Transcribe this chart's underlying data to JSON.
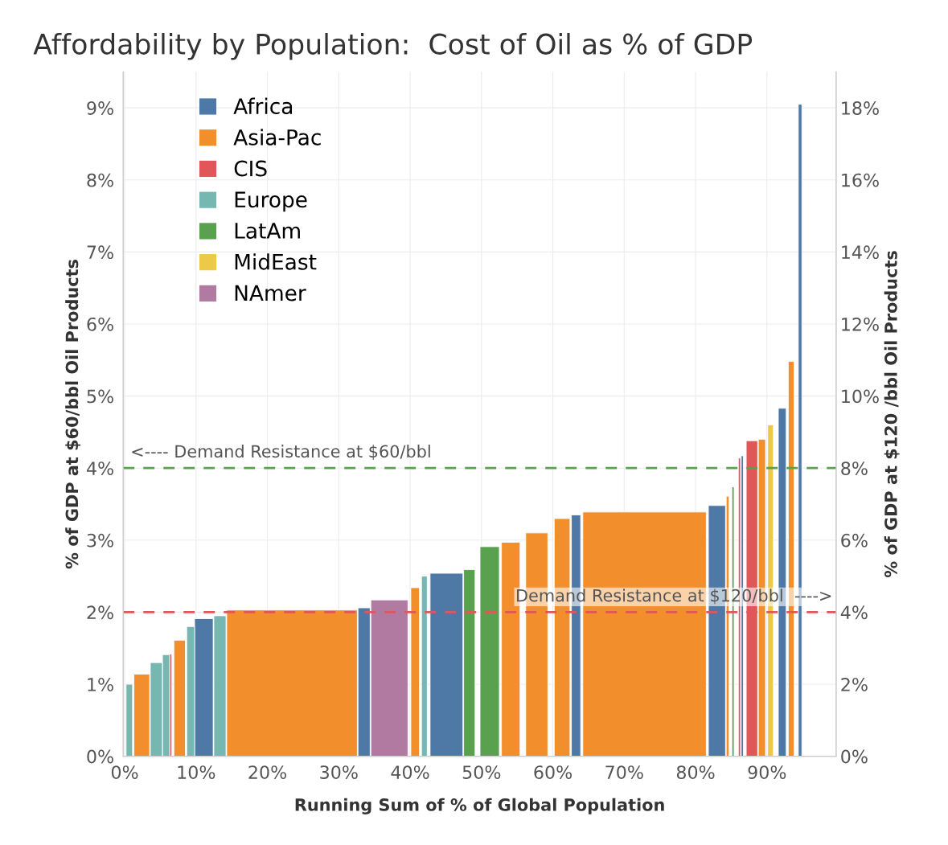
{
  "chart_data": {
    "type": "area",
    "title": "Affordability by Population:  Cost of Oil as % of GDP",
    "xlabel": "Running Sum of % of Global Population",
    "ylabel": "% of GDP at $60/bbl Oil Products",
    "y2label": "% of GDP at $120 /bbl Oil Products",
    "series": [
      {
        "name": "Africa",
        "color": "#4e79a7",
        "x": [
          9.8,
          12.4,
          null,
          32.7,
          34.4,
          null,
          42.8,
          47.4,
          null,
          62.6,
          63.9,
          null,
          81.8,
          84.2,
          null,
          86.4,
          86.7,
          null,
          91.6,
          92.7,
          null,
          94.4,
          94.9
        ],
        "values": [
          1.91,
          1.91,
          null,
          2.06,
          2.06,
          null,
          2.54,
          2.54,
          null,
          3.35,
          3.35,
          null,
          3.48,
          3.48,
          null,
          4.17,
          4.17,
          null,
          4.83,
          4.83,
          null,
          9.05,
          9.05
        ]
      },
      {
        "name": "Asia-Pac",
        "color": "#f28e2b",
        "x": [
          1.3,
          3.5,
          null,
          6.9,
          8.5,
          null,
          14.3,
          32.6,
          null,
          40.1,
          41.3,
          null,
          52.8,
          55.4,
          null,
          56.2,
          59.3,
          null,
          60.2,
          62.4,
          null,
          64.2,
          81.5,
          null,
          84.3,
          84.7,
          null,
          88.8,
          89.8,
          null,
          93.0,
          93.8
        ],
        "values": [
          1.14,
          1.14,
          null,
          1.61,
          1.61,
          null,
          2.03,
          2.03,
          null,
          2.34,
          2.34,
          null,
          2.97,
          2.97,
          null,
          3.1,
          3.1,
          null,
          3.3,
          3.3,
          null,
          3.39,
          3.39,
          null,
          3.61,
          3.61,
          null,
          4.4,
          4.4,
          null,
          5.48,
          5.48
        ]
      },
      {
        "name": "CIS",
        "color": "#e15759",
        "x": [
          6.3,
          6.6,
          null,
          86.0,
          86.3,
          null,
          87.1,
          88.7
        ],
        "values": [
          1.42,
          1.42,
          null,
          4.14,
          4.14,
          null,
          4.38,
          4.38
        ]
      },
      {
        "name": "Europe",
        "color": "#76b7b2",
        "x": [
          0.2,
          1.1,
          null,
          3.6,
          5.3,
          null,
          5.3,
          6.3,
          null,
          8.7,
          9.8,
          null,
          12.5,
          14.2,
          null,
          41.6,
          42.4
        ],
        "values": [
          1.0,
          1.0,
          null,
          1.3,
          1.3,
          null,
          1.41,
          1.41,
          null,
          1.8,
          1.8,
          null,
          1.95,
          1.95,
          null,
          2.5,
          2.5
        ]
      },
      {
        "name": "LatAm",
        "color": "#59a14f",
        "x": [
          47.5,
          49.1,
          null,
          49.8,
          52.5,
          null,
          85.1,
          85.4
        ],
        "values": [
          2.59,
          2.59,
          null,
          2.91,
          2.91,
          null,
          3.74,
          3.74
        ]
      },
      {
        "name": "MidEast",
        "color": "#edc948",
        "x": [
          90.1,
          90.9
        ],
        "values": [
          4.6,
          4.6
        ]
      },
      {
        "name": "NAmer",
        "color": "#b07aa1",
        "x": [
          34.5,
          39.7
        ],
        "values": [
          2.17,
          2.17
        ]
      }
    ],
    "xlim": [
      -0.2,
      99.7
    ],
    "xticks": [
      {
        "value": 0,
        "label": "0%"
      },
      {
        "value": 10,
        "label": "10%"
      },
      {
        "value": 20,
        "label": "20%"
      },
      {
        "value": 30,
        "label": "30%"
      },
      {
        "value": 40,
        "label": "40%"
      },
      {
        "value": 50,
        "label": "50%"
      },
      {
        "value": 60,
        "label": "60%"
      },
      {
        "value": 70,
        "label": "70%"
      },
      {
        "value": 80,
        "label": "80%"
      },
      {
        "value": 90,
        "label": "90%"
      }
    ],
    "ylim": [
      0,
      9.5
    ],
    "yticks": [
      {
        "value": 0,
        "label": "0%"
      },
      {
        "value": 1,
        "label": "1%"
      },
      {
        "value": 2,
        "label": "2%"
      },
      {
        "value": 3,
        "label": "3%"
      },
      {
        "value": 4,
        "label": "4%"
      },
      {
        "value": 5,
        "label": "5%"
      },
      {
        "value": 6,
        "label": "6%"
      },
      {
        "value": 7,
        "label": "7%"
      },
      {
        "value": 8,
        "label": "8%"
      },
      {
        "value": 9,
        "label": "9%"
      }
    ],
    "y2lim": [
      0,
      19
    ],
    "y2ticks": [
      {
        "value": 0,
        "label": "0%"
      },
      {
        "value": 2,
        "label": "2%"
      },
      {
        "value": 4,
        "label": "4%"
      },
      {
        "value": 6,
        "label": "6%"
      },
      {
        "value": 8,
        "label": "8%"
      },
      {
        "value": 10,
        "label": "10%"
      },
      {
        "value": 12,
        "label": "12%"
      },
      {
        "value": 14,
        "label": "14%"
      },
      {
        "value": 16,
        "label": "16%"
      },
      {
        "value": 18,
        "label": "18%"
      }
    ],
    "ref_lines": [
      {
        "axis": "y",
        "value": 4,
        "label": "<---- Demand Resistance at $60/bbl",
        "color": "#59a14f",
        "line_style": "dashed"
      },
      {
        "axis": "y",
        "value": 2,
        "label": "Demand Resistance at $120/bbl  ---->",
        "color": "#e15759",
        "line_style": "dashed"
      }
    ],
    "grid": true,
    "legend": "top left"
  }
}
